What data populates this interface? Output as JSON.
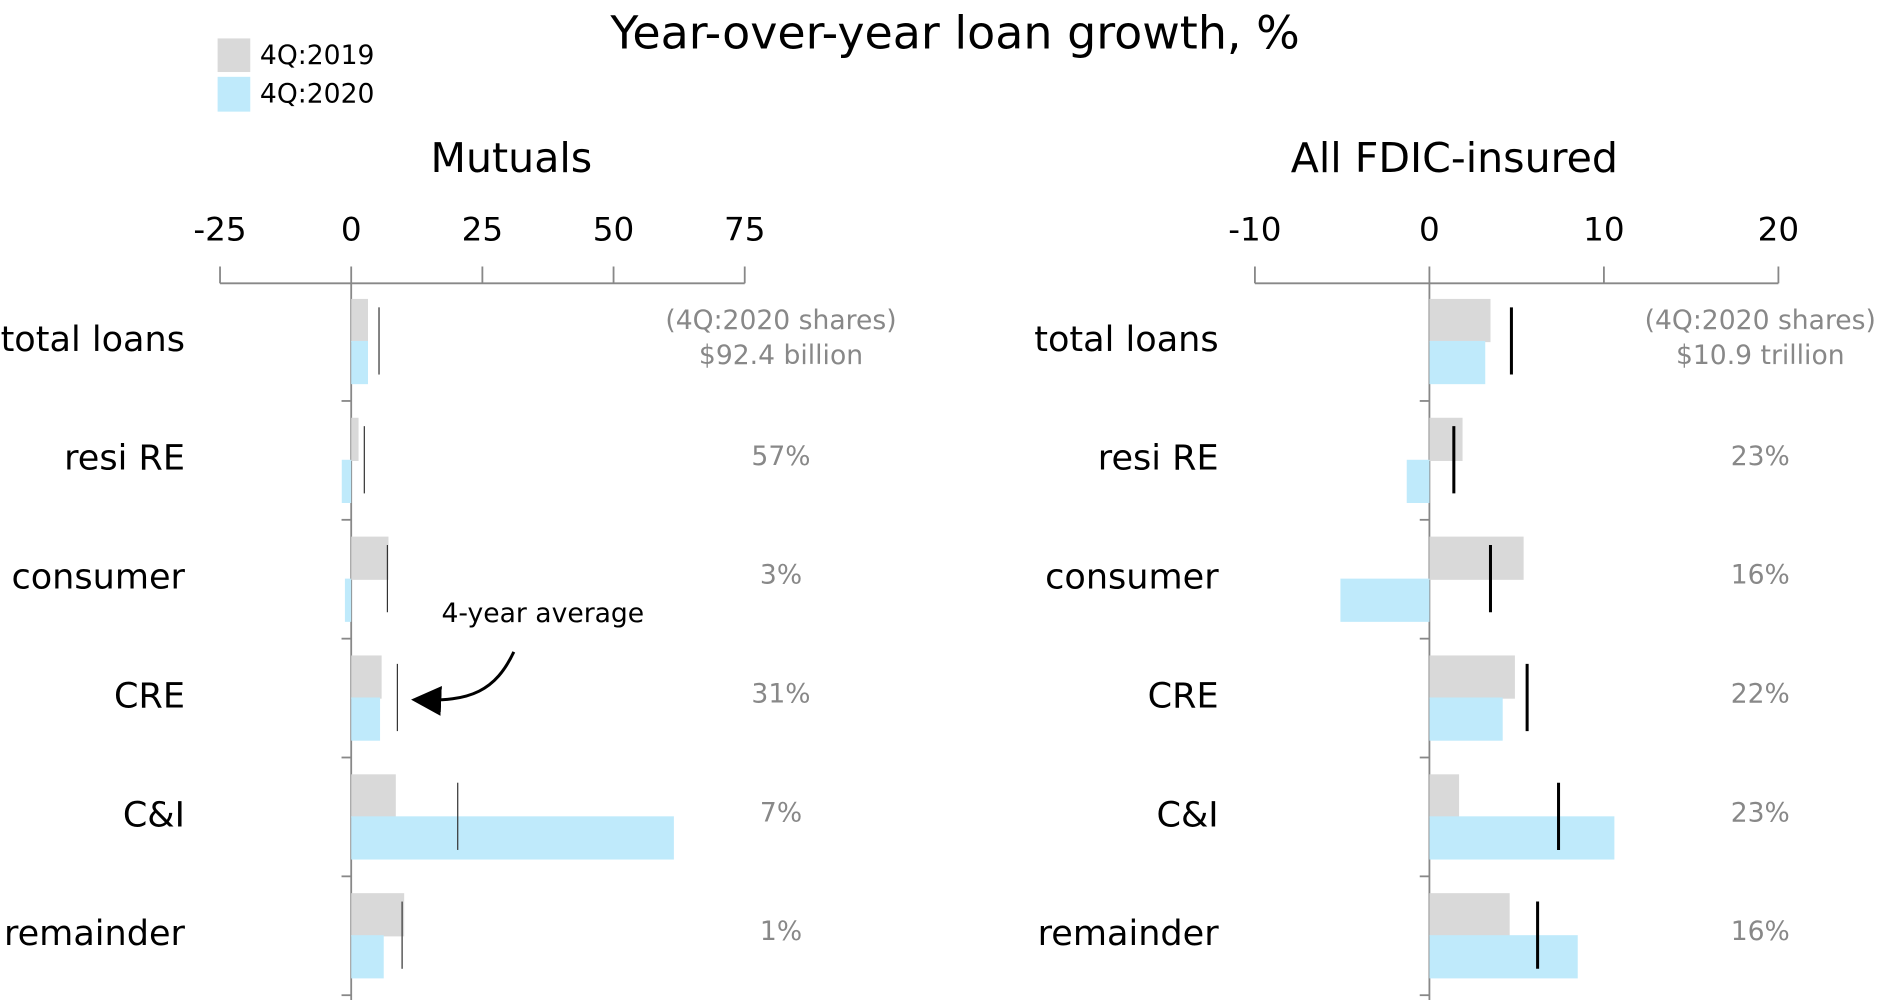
{
  "title": "Year-over-year loan growth, %",
  "chart_data": [
    {
      "type": "bar",
      "orientation": "horizontal",
      "title": "Mutuals",
      "categories": [
        "total loans",
        "resi RE",
        "consumer",
        "CRE",
        "C&I",
        "remainder"
      ],
      "series": [
        {
          "name": "4Q:2019",
          "color": "#d9d9d9",
          "values": [
            3.2,
            1.4,
            7.1,
            5.8,
            8.5,
            10.1
          ]
        },
        {
          "name": "4Q:2020",
          "color": "#bfeafb",
          "values": [
            3.2,
            -1.8,
            -1.2,
            5.5,
            61.5,
            6.2
          ]
        },
        {
          "name": "4-year average",
          "color": "#333333",
          "marker": "tick",
          "line_width": 1,
          "values": [
            5.3,
            2.5,
            6.9,
            8.8,
            20.3,
            9.7
          ]
        }
      ],
      "xlim": [
        -25,
        75
      ],
      "xticks": [
        -25,
        0,
        25,
        50,
        75
      ],
      "shares": {
        "title": "(4Q:2020 shares)",
        "total": "$92.4 billion",
        "values": [
          57,
          3,
          31,
          7,
          1
        ],
        "value_labels": [
          "57%",
          "3%",
          "31%",
          "7%",
          "1%"
        ]
      },
      "annotation": "4-year average"
    },
    {
      "type": "bar",
      "orientation": "horizontal",
      "title": "All FDIC-insured",
      "categories": [
        "total loans",
        "resi RE",
        "consumer",
        "CRE",
        "C&I",
        "remainder"
      ],
      "series": [
        {
          "name": "4Q:2019",
          "color": "#d9d9d9",
          "values": [
            3.5,
            1.9,
            5.4,
            4.9,
            1.7,
            4.6
          ]
        },
        {
          "name": "4Q:2020",
          "color": "#bfeafb",
          "values": [
            3.2,
            -1.3,
            -5.1,
            4.2,
            10.6,
            8.5
          ]
        },
        {
          "name": "4-year average",
          "color": "#000000",
          "marker": "tick",
          "line_width": 2.5,
          "values": [
            4.7,
            1.4,
            3.5,
            5.6,
            7.4,
            6.2
          ]
        }
      ],
      "xlim": [
        -10,
        20
      ],
      "xticks": [
        -10,
        0,
        10,
        20
      ],
      "shares": {
        "title": "(4Q:2020 shares)",
        "total": "$10.9 trillion",
        "values": [
          23,
          16,
          22,
          23,
          16
        ],
        "value_labels": [
          "23%",
          "16%",
          "22%",
          "23%",
          "16%"
        ]
      }
    }
  ]
}
